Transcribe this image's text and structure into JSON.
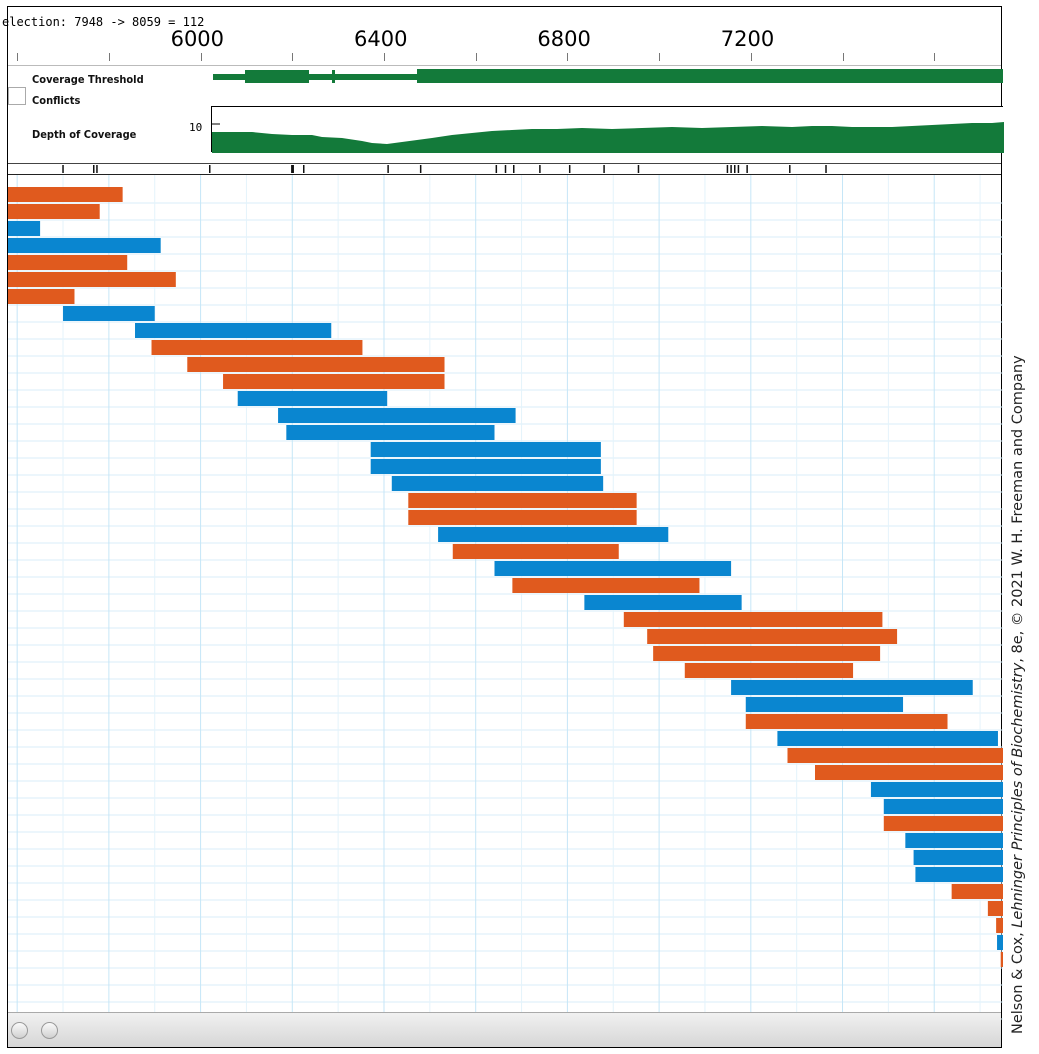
{
  "selection_text": "election: 7948 -> 8059 = 112",
  "ruler": {
    "ticks": [
      {
        "label": "6000",
        "value": 6000
      },
      {
        "label": "6400",
        "value": 6400
      },
      {
        "label": "6800",
        "value": 6800
      },
      {
        "label": "7200",
        "value": 7200
      }
    ],
    "start": 5580,
    "end": 7750
  },
  "tracks": {
    "coverage_threshold_label": "Coverage Threshold",
    "conflicts_label": "Conflicts",
    "depth_label": "Depth of Coverage",
    "depth_axis_value": "10"
  },
  "colors": {
    "forward_read": "#e05a1e",
    "reverse_read": "#0a86d0",
    "coverage": "#137a3a",
    "grid": "#c6e6f7"
  },
  "reads": [
    {
      "start": 5580,
      "end": 5830,
      "strand": "forward"
    },
    {
      "start": 5580,
      "end": 5780,
      "strand": "forward"
    },
    {
      "start": 5580,
      "end": 5650,
      "strand": "reverse"
    },
    {
      "start": 5580,
      "end": 5913,
      "strand": "reverse"
    },
    {
      "start": 5580,
      "end": 5840,
      "strand": "forward"
    },
    {
      "start": 5580,
      "end": 5946,
      "strand": "forward"
    },
    {
      "start": 5580,
      "end": 5725,
      "strand": "forward"
    },
    {
      "start": 5700,
      "end": 5900,
      "strand": "reverse"
    },
    {
      "start": 5857,
      "end": 6285,
      "strand": "reverse"
    },
    {
      "start": 5893,
      "end": 6353,
      "strand": "forward"
    },
    {
      "start": 5971,
      "end": 6532,
      "strand": "forward"
    },
    {
      "start": 6049,
      "end": 6532,
      "strand": "forward"
    },
    {
      "start": 6081,
      "end": 6407,
      "strand": "reverse"
    },
    {
      "start": 6169,
      "end": 6687,
      "strand": "reverse"
    },
    {
      "start": 6187,
      "end": 6641,
      "strand": "reverse"
    },
    {
      "start": 6371,
      "end": 6873,
      "strand": "reverse"
    },
    {
      "start": 6371,
      "end": 6873,
      "strand": "reverse"
    },
    {
      "start": 6417,
      "end": 6878,
      "strand": "reverse"
    },
    {
      "start": 6453,
      "end": 6951,
      "strand": "forward"
    },
    {
      "start": 6453,
      "end": 6951,
      "strand": "forward"
    },
    {
      "start": 6518,
      "end": 7020,
      "strand": "reverse"
    },
    {
      "start": 6550,
      "end": 6912,
      "strand": "forward"
    },
    {
      "start": 6641,
      "end": 7157,
      "strand": "reverse"
    },
    {
      "start": 6680,
      "end": 7088,
      "strand": "forward"
    },
    {
      "start": 6837,
      "end": 7180,
      "strand": "reverse"
    },
    {
      "start": 6923,
      "end": 7487,
      "strand": "forward"
    },
    {
      "start": 6974,
      "end": 7519,
      "strand": "forward"
    },
    {
      "start": 6987,
      "end": 7482,
      "strand": "forward"
    },
    {
      "start": 7056,
      "end": 7423,
      "strand": "forward"
    },
    {
      "start": 7157,
      "end": 7684,
      "strand": "reverse"
    },
    {
      "start": 7189,
      "end": 7532,
      "strand": "reverse"
    },
    {
      "start": 7189,
      "end": 7629,
      "strand": "forward"
    },
    {
      "start": 7258,
      "end": 7739,
      "strand": "reverse"
    },
    {
      "start": 7280,
      "end": 7750,
      "strand": "forward"
    },
    {
      "start": 7340,
      "end": 7750,
      "strand": "forward"
    },
    {
      "start": 7462,
      "end": 7750,
      "strand": "reverse"
    },
    {
      "start": 7490,
      "end": 7750,
      "strand": "reverse"
    },
    {
      "start": 7490,
      "end": 7750,
      "strand": "forward"
    },
    {
      "start": 7537,
      "end": 7750,
      "strand": "reverse"
    },
    {
      "start": 7555,
      "end": 7750,
      "strand": "reverse"
    },
    {
      "start": 7559,
      "end": 7750,
      "strand": "reverse"
    },
    {
      "start": 7638,
      "end": 7750,
      "strand": "forward"
    },
    {
      "start": 7717,
      "end": 7750,
      "strand": "forward"
    },
    {
      "start": 7735,
      "end": 7750,
      "strand": "forward"
    },
    {
      "start": 7737,
      "end": 7750,
      "strand": "reverse"
    },
    {
      "start": 7745,
      "end": 7750,
      "strand": "forward"
    }
  ],
  "credit": {
    "prefix": "Nelson & Cox, ",
    "title": "Lehninger Principles of Biochemistry",
    "suffix": ", 8e, © 2021 W. H. Freeman and Company"
  }
}
